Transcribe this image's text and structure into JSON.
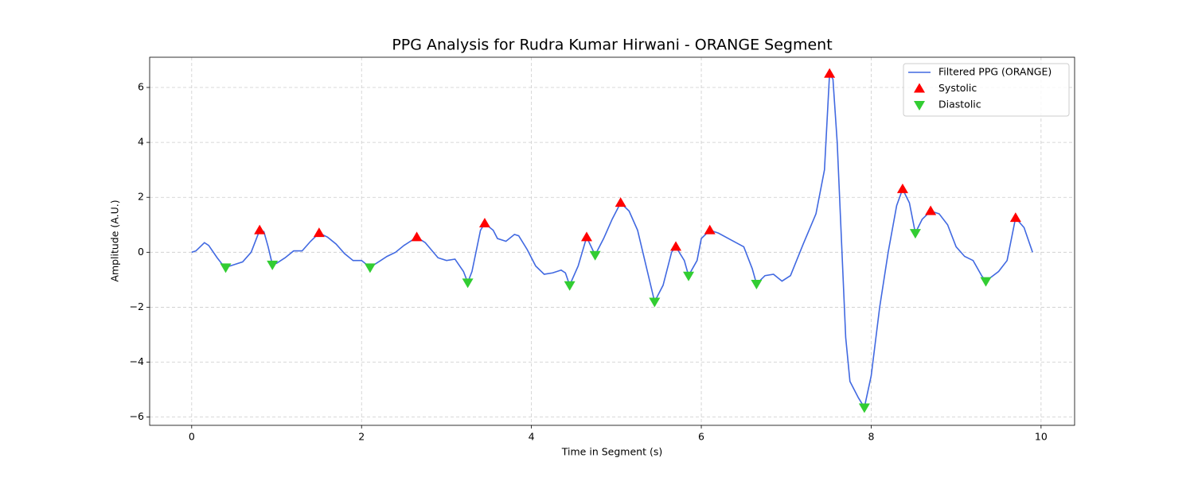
{
  "chart_data": {
    "type": "line",
    "title": "PPG Analysis for Rudra Kumar Hirwani - ORANGE Segment",
    "x_label": "Time in Segment (s)",
    "y_label": "Amplitude (A.U.)",
    "xlim": [
      -0.495,
      10.395
    ],
    "ylim": [
      -6.3,
      7.1
    ],
    "xticks": [
      0,
      2,
      4,
      6,
      8,
      10
    ],
    "yticks": [
      {
        "value": -6,
        "label": "−6"
      },
      {
        "value": -4,
        "label": "−4"
      },
      {
        "value": -2,
        "label": "−2"
      },
      0,
      2,
      4,
      6
    ],
    "grid": true,
    "legend": "upper right",
    "series": [
      {
        "name": "Filtered PPG (ORANGE)",
        "color": "#4169e1",
        "style": "line",
        "x": [
          0,
          0.05,
          0.1,
          0.15,
          0.2,
          0.3,
          0.35,
          0.4,
          0.5,
          0.6,
          0.7,
          0.8,
          0.85,
          0.9,
          0.95,
          1.0,
          1.1,
          1.2,
          1.3,
          1.4,
          1.5,
          1.6,
          1.7,
          1.8,
          1.9,
          2.0,
          2.1,
          2.2,
          2.3,
          2.4,
          2.5,
          2.65,
          2.75,
          2.9,
          3.0,
          3.1,
          3.2,
          3.25,
          3.3,
          3.4,
          3.45,
          3.55,
          3.6,
          3.7,
          3.8,
          3.85,
          3.95,
          4.05,
          4.15,
          4.25,
          4.35,
          4.4,
          4.45,
          4.55,
          4.65,
          4.75,
          4.85,
          4.95,
          5.05,
          5.15,
          5.25,
          5.35,
          5.45,
          5.55,
          5.65,
          5.7,
          5.8,
          5.85,
          5.95,
          6.0,
          6.1,
          6.2,
          6.35,
          6.5,
          6.6,
          6.65,
          6.75,
          6.85,
          6.95,
          7.05,
          7.2,
          7.35,
          7.45,
          7.51,
          7.55,
          7.6,
          7.7,
          7.75,
          7.85,
          7.92,
          8.0,
          8.1,
          8.2,
          8.3,
          8.37,
          8.45,
          8.52,
          8.6,
          8.7,
          8.8,
          8.9,
          9.0,
          9.1,
          9.2,
          9.3,
          9.35,
          9.5,
          9.6,
          9.7,
          9.8,
          9.9
        ],
        "values": [
          0,
          0.05,
          0.2,
          0.35,
          0.25,
          -0.2,
          -0.4,
          -0.55,
          -0.45,
          -0.35,
          0.0,
          0.8,
          0.75,
          0.2,
          -0.45,
          -0.4,
          -0.2,
          0.05,
          0.05,
          0.4,
          0.7,
          0.55,
          0.3,
          -0.05,
          -0.3,
          -0.3,
          -0.55,
          -0.35,
          -0.15,
          0.0,
          0.25,
          0.55,
          0.35,
          -0.2,
          -0.3,
          -0.25,
          -0.7,
          -1.1,
          -0.7,
          0.8,
          1.05,
          0.8,
          0.5,
          0.4,
          0.65,
          0.6,
          0.1,
          -0.5,
          -0.8,
          -0.75,
          -0.65,
          -0.75,
          -1.2,
          -0.5,
          0.55,
          -0.1,
          0.5,
          1.2,
          1.8,
          1.5,
          0.8,
          -0.5,
          -1.8,
          -1.2,
          0.0,
          0.2,
          -0.3,
          -0.85,
          -0.3,
          0.5,
          0.8,
          0.7,
          0.45,
          0.2,
          -0.6,
          -1.15,
          -0.85,
          -0.8,
          -1.05,
          -0.85,
          0.3,
          1.4,
          3.0,
          6.5,
          6.3,
          4.0,
          -3.1,
          -4.7,
          -5.3,
          -5.65,
          -4.5,
          -2.0,
          0.0,
          1.7,
          2.3,
          1.8,
          0.7,
          1.2,
          1.5,
          1.4,
          1.0,
          0.2,
          -0.15,
          -0.3,
          -0.85,
          -1.05,
          -0.7,
          -0.3,
          1.25,
          0.9,
          0.0
        ]
      },
      {
        "name": "Systolic",
        "color": "#ff0000",
        "style": "markers",
        "marker": "triangle-up",
        "x": [
          0.8,
          1.5,
          2.65,
          3.45,
          4.65,
          5.05,
          5.7,
          6.1,
          7.51,
          8.37,
          8.7,
          9.7
        ],
        "values": [
          0.8,
          0.7,
          0.55,
          1.05,
          0.55,
          1.8,
          0.2,
          0.8,
          6.5,
          2.3,
          1.5,
          1.25
        ]
      },
      {
        "name": "Diastolic",
        "color": "#32cd32",
        "style": "markers",
        "marker": "triangle-down",
        "x": [
          0.4,
          0.95,
          2.1,
          3.25,
          4.45,
          4.75,
          5.45,
          5.85,
          6.65,
          7.92,
          8.52,
          9.35
        ],
        "values": [
          -0.55,
          -0.45,
          -0.55,
          -1.1,
          -1.2,
          -0.1,
          -1.8,
          -0.85,
          -1.15,
          -5.65,
          0.7,
          -1.05
        ]
      }
    ]
  }
}
